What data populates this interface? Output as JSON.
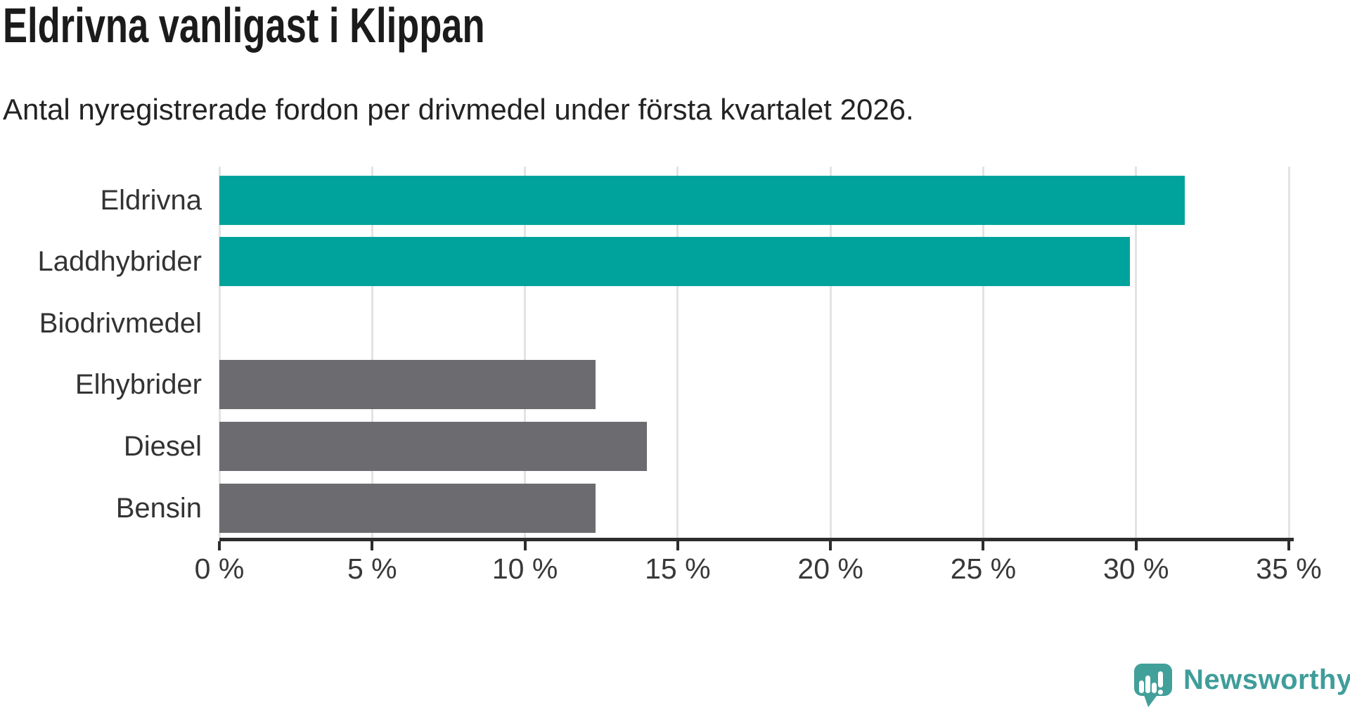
{
  "title": "Eldrivna vanligast i Klippan",
  "subtitle": "Antal nyregistrerade fordon per drivmedel under första kvartalet 2026.",
  "chart_data": {
    "type": "bar",
    "orientation": "horizontal",
    "title": "Eldrivna vanligast i Klippan",
    "subtitle": "Antal nyregistrerade fordon per drivmedel under första kvartalet 2026.",
    "categories": [
      "Eldrivna",
      "Laddhybrider",
      "Biodrivmedel",
      "Elhybrider",
      "Diesel",
      "Bensin"
    ],
    "values": [
      31.6,
      29.8,
      0,
      12.3,
      14.0,
      12.3
    ],
    "unit": "%",
    "xlim": [
      0,
      35
    ],
    "x_tick_values": [
      0,
      5,
      10,
      15,
      20,
      25,
      30,
      35
    ],
    "x_tick_labels": [
      "0 %",
      "5 %",
      "10 %",
      "15 %",
      "20 %",
      "25 %",
      "30 %",
      "35 %"
    ],
    "grid": "vertical-gridlines-only",
    "legend": "none",
    "bar_colors": [
      "#00a39b",
      "#00a39b",
      "#00a39b",
      "#6c6b70",
      "#6c6b70",
      "#6c6b70"
    ]
  },
  "colors": {
    "highlight_teal": "#00a39b",
    "muted_gray": "#6c6b70",
    "gridline": "#e3e3e3",
    "axis": "#2d2d2d",
    "title_text": "#1b1b1b",
    "label_text": "#333333"
  },
  "branding": {
    "logo_text": "Newsworthy",
    "logo_color": "#3f9d9a",
    "logo_icon_color": "#42a09a",
    "logo_icon": "speech-bubble-bar-chart-exclamation"
  }
}
